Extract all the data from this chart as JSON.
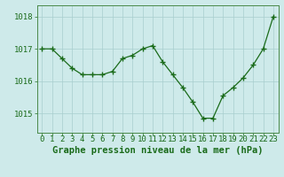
{
  "x": [
    0,
    1,
    2,
    3,
    4,
    5,
    6,
    7,
    8,
    9,
    10,
    11,
    12,
    13,
    14,
    15,
    16,
    17,
    18,
    19,
    20,
    21,
    22,
    23
  ],
  "y": [
    1017.0,
    1017.0,
    1016.7,
    1016.4,
    1016.2,
    1016.2,
    1016.2,
    1016.3,
    1016.7,
    1016.8,
    1017.0,
    1017.1,
    1016.6,
    1016.2,
    1015.8,
    1015.35,
    1014.85,
    1014.85,
    1015.55,
    1015.8,
    1016.1,
    1016.5,
    1017.0,
    1018.0
  ],
  "line_color": "#1a6b1a",
  "marker": "+",
  "marker_size": 4,
  "marker_color": "#1a6b1a",
  "background_color": "#ceeaea",
  "grid_color": "#a8cece",
  "xlabel": "Graphe pression niveau de la mer (hPa)",
  "xlabel_fontsize": 7.5,
  "ylabel_ticks": [
    1015,
    1016,
    1017,
    1018
  ],
  "xlim": [
    -0.5,
    23.5
  ],
  "ylim": [
    1014.4,
    1018.35
  ],
  "tick_color": "#1a6b1a",
  "tick_fontsize": 6.5,
  "spine_color": "#4a8a4a",
  "figsize": [
    3.2,
    2.0
  ],
  "dpi": 100
}
